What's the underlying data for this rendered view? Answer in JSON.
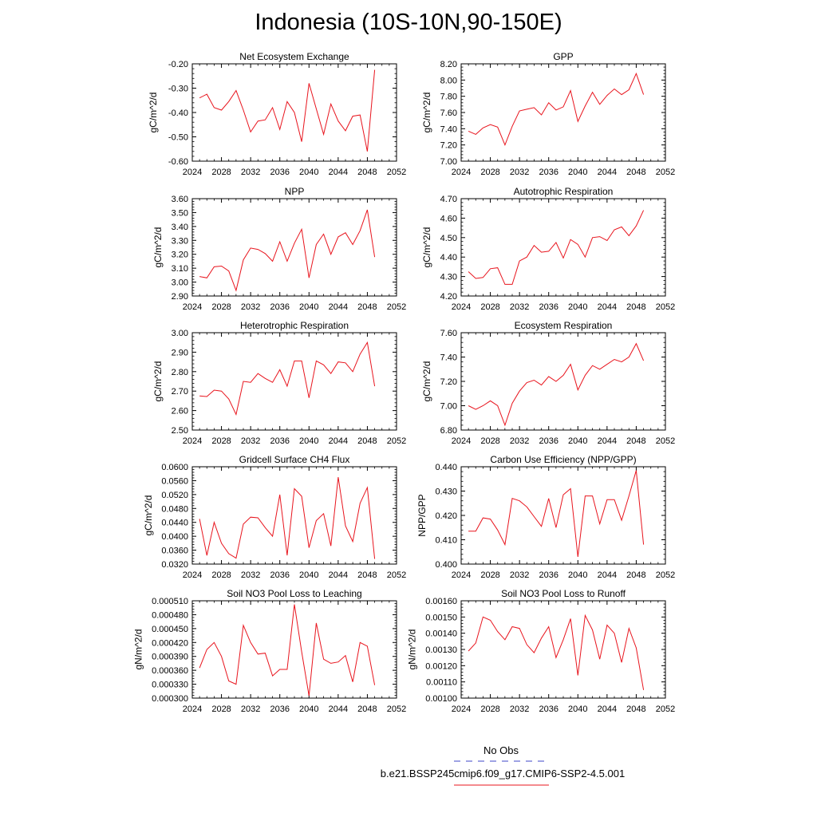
{
  "title": "Indonesia (10S-10N,90-150E)",
  "colors": {
    "series": "#e8141d",
    "obs": "#3c46c8",
    "axis": "#000000"
  },
  "legend": {
    "obs_label": "No Obs",
    "model_label": "b.e21.BSSP245cmip6.f09_g17.CMIP6-SSP2-4.5.001"
  },
  "xaxis": {
    "range": [
      2024,
      2052
    ],
    "ticks": [
      "2024",
      "2028",
      "2032",
      "2036",
      "2040",
      "2044",
      "2048",
      "2052"
    ]
  },
  "chart_data": [
    {
      "type": "line",
      "title": "Net Ecosystem Exchange",
      "ylabel": "gC/m^2/d",
      "ylim": [
        -0.6,
        -0.2
      ],
      "yticks": [
        "-0.60",
        "-0.50",
        "-0.40",
        "-0.30",
        "-0.20"
      ],
      "xlim": [
        2024,
        2052
      ],
      "x": [
        2025,
        2026,
        2027,
        2028,
        2029,
        2030,
        2031,
        2032,
        2033,
        2034,
        2035,
        2036,
        2037,
        2038,
        2039,
        2040,
        2041,
        2042,
        2043,
        2044,
        2045,
        2046,
        2047,
        2048,
        2049
      ],
      "series": [
        {
          "values": [
            -0.34,
            -0.325,
            -0.38,
            -0.39,
            -0.355,
            -0.31,
            -0.39,
            -0.48,
            -0.435,
            -0.43,
            -0.38,
            -0.47,
            -0.355,
            -0.4,
            -0.52,
            -0.28,
            -0.385,
            -0.49,
            -0.365,
            -0.435,
            -0.475,
            -0.415,
            -0.41,
            -0.56,
            -0.225
          ]
        }
      ]
    },
    {
      "type": "line",
      "title": "GPP",
      "ylabel": "gC/m^2/d",
      "ylim": [
        7.0,
        8.2
      ],
      "yticks": [
        "7.00",
        "7.20",
        "7.40",
        "7.60",
        "7.80",
        "8.00",
        "8.20"
      ],
      "xlim": [
        2024,
        2052
      ],
      "x": [
        2025,
        2026,
        2027,
        2028,
        2029,
        2030,
        2031,
        2032,
        2033,
        2034,
        2035,
        2036,
        2037,
        2038,
        2039,
        2040,
        2041,
        2042,
        2043,
        2044,
        2045,
        2046,
        2047,
        2048,
        2049
      ],
      "series": [
        {
          "values": [
            7.37,
            7.33,
            7.41,
            7.45,
            7.42,
            7.2,
            7.43,
            7.62,
            7.64,
            7.66,
            7.57,
            7.72,
            7.63,
            7.67,
            7.87,
            7.49,
            7.68,
            7.85,
            7.7,
            7.81,
            7.89,
            7.82,
            7.88,
            8.08,
            7.82
          ]
        }
      ]
    },
    {
      "type": "line",
      "title": "NPP",
      "ylabel": "gC/m^2/d",
      "ylim": [
        2.9,
        3.6
      ],
      "yticks": [
        "2.90",
        "3.00",
        "3.10",
        "3.20",
        "3.30",
        "3.40",
        "3.50",
        "3.60"
      ],
      "xlim": [
        2024,
        2052
      ],
      "x": [
        2025,
        2026,
        2027,
        2028,
        2029,
        2030,
        2031,
        2032,
        2033,
        2034,
        2035,
        2036,
        2037,
        2038,
        2039,
        2040,
        2041,
        2042,
        2043,
        2044,
        2045,
        2046,
        2047,
        2048,
        2049
      ],
      "series": [
        {
          "values": [
            3.04,
            3.03,
            3.11,
            3.115,
            3.08,
            2.94,
            3.16,
            3.245,
            3.235,
            3.205,
            3.15,
            3.29,
            3.15,
            3.28,
            3.38,
            3.03,
            3.27,
            3.345,
            3.2,
            3.325,
            3.355,
            3.27,
            3.37,
            3.52,
            3.18
          ]
        }
      ]
    },
    {
      "type": "line",
      "title": "Autotrophic Respiration",
      "ylabel": "gC/m^2/d",
      "ylim": [
        4.2,
        4.7
      ],
      "yticks": [
        "4.20",
        "4.30",
        "4.40",
        "4.50",
        "4.60",
        "4.70"
      ],
      "xlim": [
        2024,
        2052
      ],
      "x": [
        2025,
        2026,
        2027,
        2028,
        2029,
        2030,
        2031,
        2032,
        2033,
        2034,
        2035,
        2036,
        2037,
        2038,
        2039,
        2040,
        2041,
        2042,
        2043,
        2044,
        2045,
        2046,
        2047,
        2048,
        2049
      ],
      "series": [
        {
          "values": [
            4.325,
            4.29,
            4.295,
            4.34,
            4.345,
            4.26,
            4.26,
            4.38,
            4.4,
            4.46,
            4.425,
            4.43,
            4.475,
            4.395,
            4.49,
            4.465,
            4.4,
            4.5,
            4.505,
            4.485,
            4.54,
            4.555,
            4.51,
            4.56,
            4.64
          ]
        }
      ]
    },
    {
      "type": "line",
      "title": "Heterotrophic Respiration",
      "ylabel": "gC/m^2/d",
      "ylim": [
        2.5,
        3.0
      ],
      "yticks": [
        "2.50",
        "2.60",
        "2.70",
        "2.80",
        "2.90",
        "3.00"
      ],
      "xlim": [
        2024,
        2052
      ],
      "x": [
        2025,
        2026,
        2027,
        2028,
        2029,
        2030,
        2031,
        2032,
        2033,
        2034,
        2035,
        2036,
        2037,
        2038,
        2039,
        2040,
        2041,
        2042,
        2043,
        2044,
        2045,
        2046,
        2047,
        2048,
        2049
      ],
      "series": [
        {
          "values": [
            2.675,
            2.672,
            2.705,
            2.7,
            2.66,
            2.58,
            2.75,
            2.745,
            2.79,
            2.765,
            2.745,
            2.81,
            2.725,
            2.855,
            2.855,
            2.665,
            2.855,
            2.835,
            2.79,
            2.85,
            2.845,
            2.8,
            2.89,
            2.95,
            2.725
          ]
        }
      ]
    },
    {
      "type": "line",
      "title": "Ecosystem Respiration",
      "ylabel": "gC/m^2/d",
      "ylim": [
        6.8,
        7.6
      ],
      "yticks": [
        "6.80",
        "7.00",
        "7.20",
        "7.40",
        "7.60"
      ],
      "xlim": [
        2024,
        2052
      ],
      "x": [
        2025,
        2026,
        2027,
        2028,
        2029,
        2030,
        2031,
        2032,
        2033,
        2034,
        2035,
        2036,
        2037,
        2038,
        2039,
        2040,
        2041,
        2042,
        2043,
        2044,
        2045,
        2046,
        2047,
        2048,
        2049
      ],
      "series": [
        {
          "values": [
            7.0,
            6.97,
            7.0,
            7.04,
            7.0,
            6.84,
            7.02,
            7.12,
            7.19,
            7.21,
            7.17,
            7.24,
            7.2,
            7.25,
            7.34,
            7.13,
            7.25,
            7.33,
            7.3,
            7.34,
            7.38,
            7.36,
            7.4,
            7.51,
            7.37
          ]
        }
      ]
    },
    {
      "type": "line",
      "title": "Gridcell Surface CH4 Flux",
      "ylabel": "gC/m^2/d",
      "ylim": [
        0.032,
        0.06
      ],
      "yticks": [
        "0.0320",
        "0.0360",
        "0.0400",
        "0.0440",
        "0.0480",
        "0.0520",
        "0.0560",
        "0.0600"
      ],
      "xlim": [
        2024,
        2052
      ],
      "x": [
        2025,
        2026,
        2027,
        2028,
        2029,
        2030,
        2031,
        2032,
        2033,
        2034,
        2035,
        2036,
        2037,
        2038,
        2039,
        2040,
        2041,
        2042,
        2043,
        2044,
        2045,
        2046,
        2047,
        2048,
        2049
      ],
      "series": [
        {
          "values": [
            0.045,
            0.0345,
            0.044,
            0.038,
            0.035,
            0.0337,
            0.0435,
            0.0455,
            0.0453,
            0.0425,
            0.04,
            0.052,
            0.0345,
            0.0537,
            0.0515,
            0.0367,
            0.0445,
            0.0465,
            0.0372,
            0.057,
            0.043,
            0.0385,
            0.0495,
            0.054,
            0.0335
          ]
        }
      ]
    },
    {
      "type": "line",
      "title": "Carbon Use Efficiency (NPP/GPP)",
      "ylabel": "NPP/GPP",
      "ylim": [
        0.4,
        0.44
      ],
      "yticks": [
        "0.400",
        "0.410",
        "0.420",
        "0.430",
        "0.440"
      ],
      "xlim": [
        2024,
        2052
      ],
      "x": [
        2025,
        2026,
        2027,
        2028,
        2029,
        2030,
        2031,
        2032,
        2033,
        2034,
        2035,
        2036,
        2037,
        2038,
        2039,
        2040,
        2041,
        2042,
        2043,
        2044,
        2045,
        2046,
        2047,
        2048,
        2049
      ],
      "series": [
        {
          "values": [
            0.4135,
            0.4135,
            0.419,
            0.4185,
            0.414,
            0.408,
            0.427,
            0.426,
            0.4235,
            0.4195,
            0.4155,
            0.427,
            0.415,
            0.4285,
            0.431,
            0.403,
            0.428,
            0.428,
            0.4165,
            0.4265,
            0.4265,
            0.418,
            0.428,
            0.4385,
            0.408
          ]
        }
      ]
    },
    {
      "type": "line",
      "title": "Soil NO3 Pool Loss to Leaching",
      "ylabel": "gN/m^2/d",
      "ylim": [
        0.0003,
        0.00051
      ],
      "yticks": [
        "0.000300",
        "0.000330",
        "0.000360",
        "0.000390",
        "0.000420",
        "0.000450",
        "0.000480",
        "0.000510"
      ],
      "xlim": [
        2024,
        2052
      ],
      "x": [
        2025,
        2026,
        2027,
        2028,
        2029,
        2030,
        2031,
        2032,
        2033,
        2034,
        2035,
        2036,
        2037,
        2038,
        2039,
        2040,
        2041,
        2042,
        2043,
        2044,
        2045,
        2046,
        2047,
        2048,
        2049
      ],
      "series": [
        {
          "values": [
            0.000365,
            0.000405,
            0.00042,
            0.00039,
            0.000337,
            0.00033,
            0.000457,
            0.00042,
            0.000395,
            0.000397,
            0.000348,
            0.000362,
            0.000362,
            0.000502,
            0.0004,
            0.000305,
            0.000462,
            0.000384,
            0.000375,
            0.000378,
            0.000392,
            0.000335,
            0.00042,
            0.000412,
            0.000328
          ]
        }
      ]
    },
    {
      "type": "line",
      "title": "Soil NO3 Pool Loss to Runoff",
      "ylabel": "gN/m^2/d",
      "ylim": [
        0.001,
        0.0016
      ],
      "yticks": [
        "0.00100",
        "0.00110",
        "0.00120",
        "0.00130",
        "0.00140",
        "0.00150",
        "0.00160"
      ],
      "xlim": [
        2024,
        2052
      ],
      "x": [
        2025,
        2026,
        2027,
        2028,
        2029,
        2030,
        2031,
        2032,
        2033,
        2034,
        2035,
        2036,
        2037,
        2038,
        2039,
        2040,
        2041,
        2042,
        2043,
        2044,
        2045,
        2046,
        2047,
        2048,
        2049
      ],
      "series": [
        {
          "values": [
            0.00129,
            0.00134,
            0.0015,
            0.00148,
            0.00141,
            0.00136,
            0.00144,
            0.00143,
            0.00133,
            0.00128,
            0.00137,
            0.00144,
            0.00125,
            0.00136,
            0.00149,
            0.00114,
            0.00151,
            0.00142,
            0.00124,
            0.00145,
            0.0014,
            0.00122,
            0.00143,
            0.00131,
            0.00105
          ]
        }
      ]
    }
  ]
}
